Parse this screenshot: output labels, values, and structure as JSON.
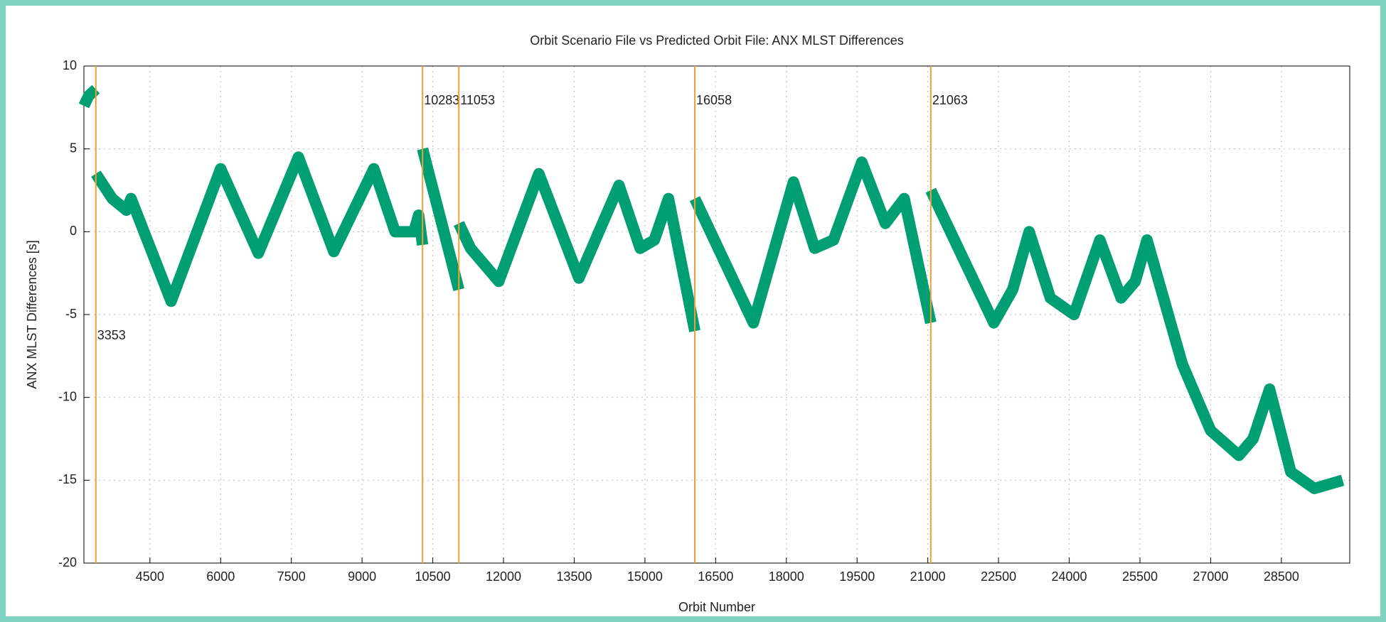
{
  "chart_data": {
    "type": "line",
    "title": "Orbit Scenario File vs Predicted Orbit File: ANX MLST Differences",
    "x_label": "Orbit Number",
    "y_label": "ANX MLST Differences [s]",
    "xlim": [
      3100,
      29950
    ],
    "ylim": [
      -20,
      10
    ],
    "xticks": [
      4500,
      6000,
      7500,
      9000,
      10500,
      12000,
      13500,
      15000,
      16500,
      18000,
      19500,
      21000,
      22500,
      24000,
      25500,
      27000,
      28500
    ],
    "yticks": [
      -20,
      -15,
      -10,
      -5,
      0,
      5,
      10
    ],
    "grid": true,
    "vlines": [
      3353,
      10283,
      11053,
      16058,
      21063
    ],
    "vline_color": "#f0a030",
    "x": [
      3100,
      3200,
      3353,
      null,
      3353,
      3700,
      4000,
      4100,
      4950,
      6000,
      6800,
      7650,
      8400,
      9250,
      9700,
      10100,
      10200,
      10283,
      null,
      10283,
      11053,
      null,
      11053,
      11300,
      11900,
      12750,
      13600,
      14450,
      14900,
      15200,
      15500,
      16058,
      null,
      16058,
      17300,
      18150,
      18600,
      19000,
      19600,
      20100,
      20500,
      21063,
      null,
      21063,
      22400,
      22800,
      23150,
      23600,
      24100,
      24650,
      25100,
      25400,
      25650,
      26400,
      27000,
      27600,
      27900,
      28250,
      28700,
      29200,
      29800
    ],
    "series": [
      {
        "name": "ANX MLST Differences",
        "color": "#009e73",
        "values": [
          7.6,
          8.2,
          8.6,
          null,
          3.5,
          2.0,
          1.3,
          2.0,
          -4.2,
          3.8,
          -1.3,
          4.5,
          -1.2,
          3.8,
          0.0,
          0.0,
          1.0,
          -0.8,
          null,
          5.0,
          -3.5,
          null,
          0.5,
          -1.0,
          -3.0,
          3.5,
          -2.8,
          2.8,
          -1.0,
          -0.5,
          2.0,
          -6.0,
          null,
          2.0,
          -5.5,
          3.0,
          -1.0,
          -0.5,
          4.2,
          0.5,
          2.0,
          -5.5,
          null,
          2.5,
          -5.5,
          -3.5,
          0.0,
          -4.0,
          -5.0,
          -0.5,
          -4.0,
          -3.0,
          -0.5,
          -8.0,
          -12.0,
          -13.5,
          -12.5,
          -9.5,
          -14.5,
          -15.5,
          -15.0
        ]
      }
    ]
  }
}
